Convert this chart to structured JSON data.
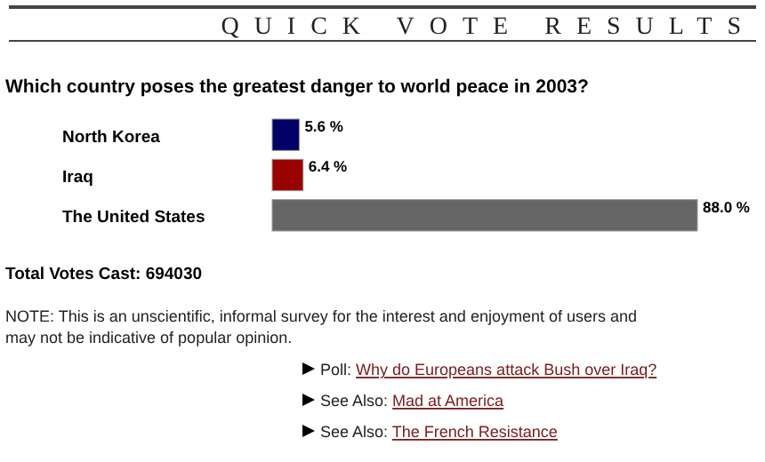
{
  "chart_data": {
    "type": "bar",
    "orientation": "horizontal",
    "title": "QUICK VOTE RESULTS",
    "subtitle": "Which country poses the greatest danger to world peace in 2003?",
    "categories": [
      "North Korea",
      "Iraq",
      "The United States"
    ],
    "values": [
      5.6,
      6.4,
      88.0
    ],
    "colors": [
      "#000066",
      "#990000",
      "#666666"
    ],
    "value_labels": [
      "5.6 %",
      "6.4 %",
      "88.0 %"
    ],
    "annotations": [
      "Total Votes Cast: 694030",
      "NOTE: This is an unscientific, informal survey for the interest and enjoyment of users and may not be indicative of popular opinion.",
      "Poll: Why do Europeans attack Bush over Iraq?",
      "See Also: Mad at America",
      "See Also: The French Resistance"
    ]
  }
}
